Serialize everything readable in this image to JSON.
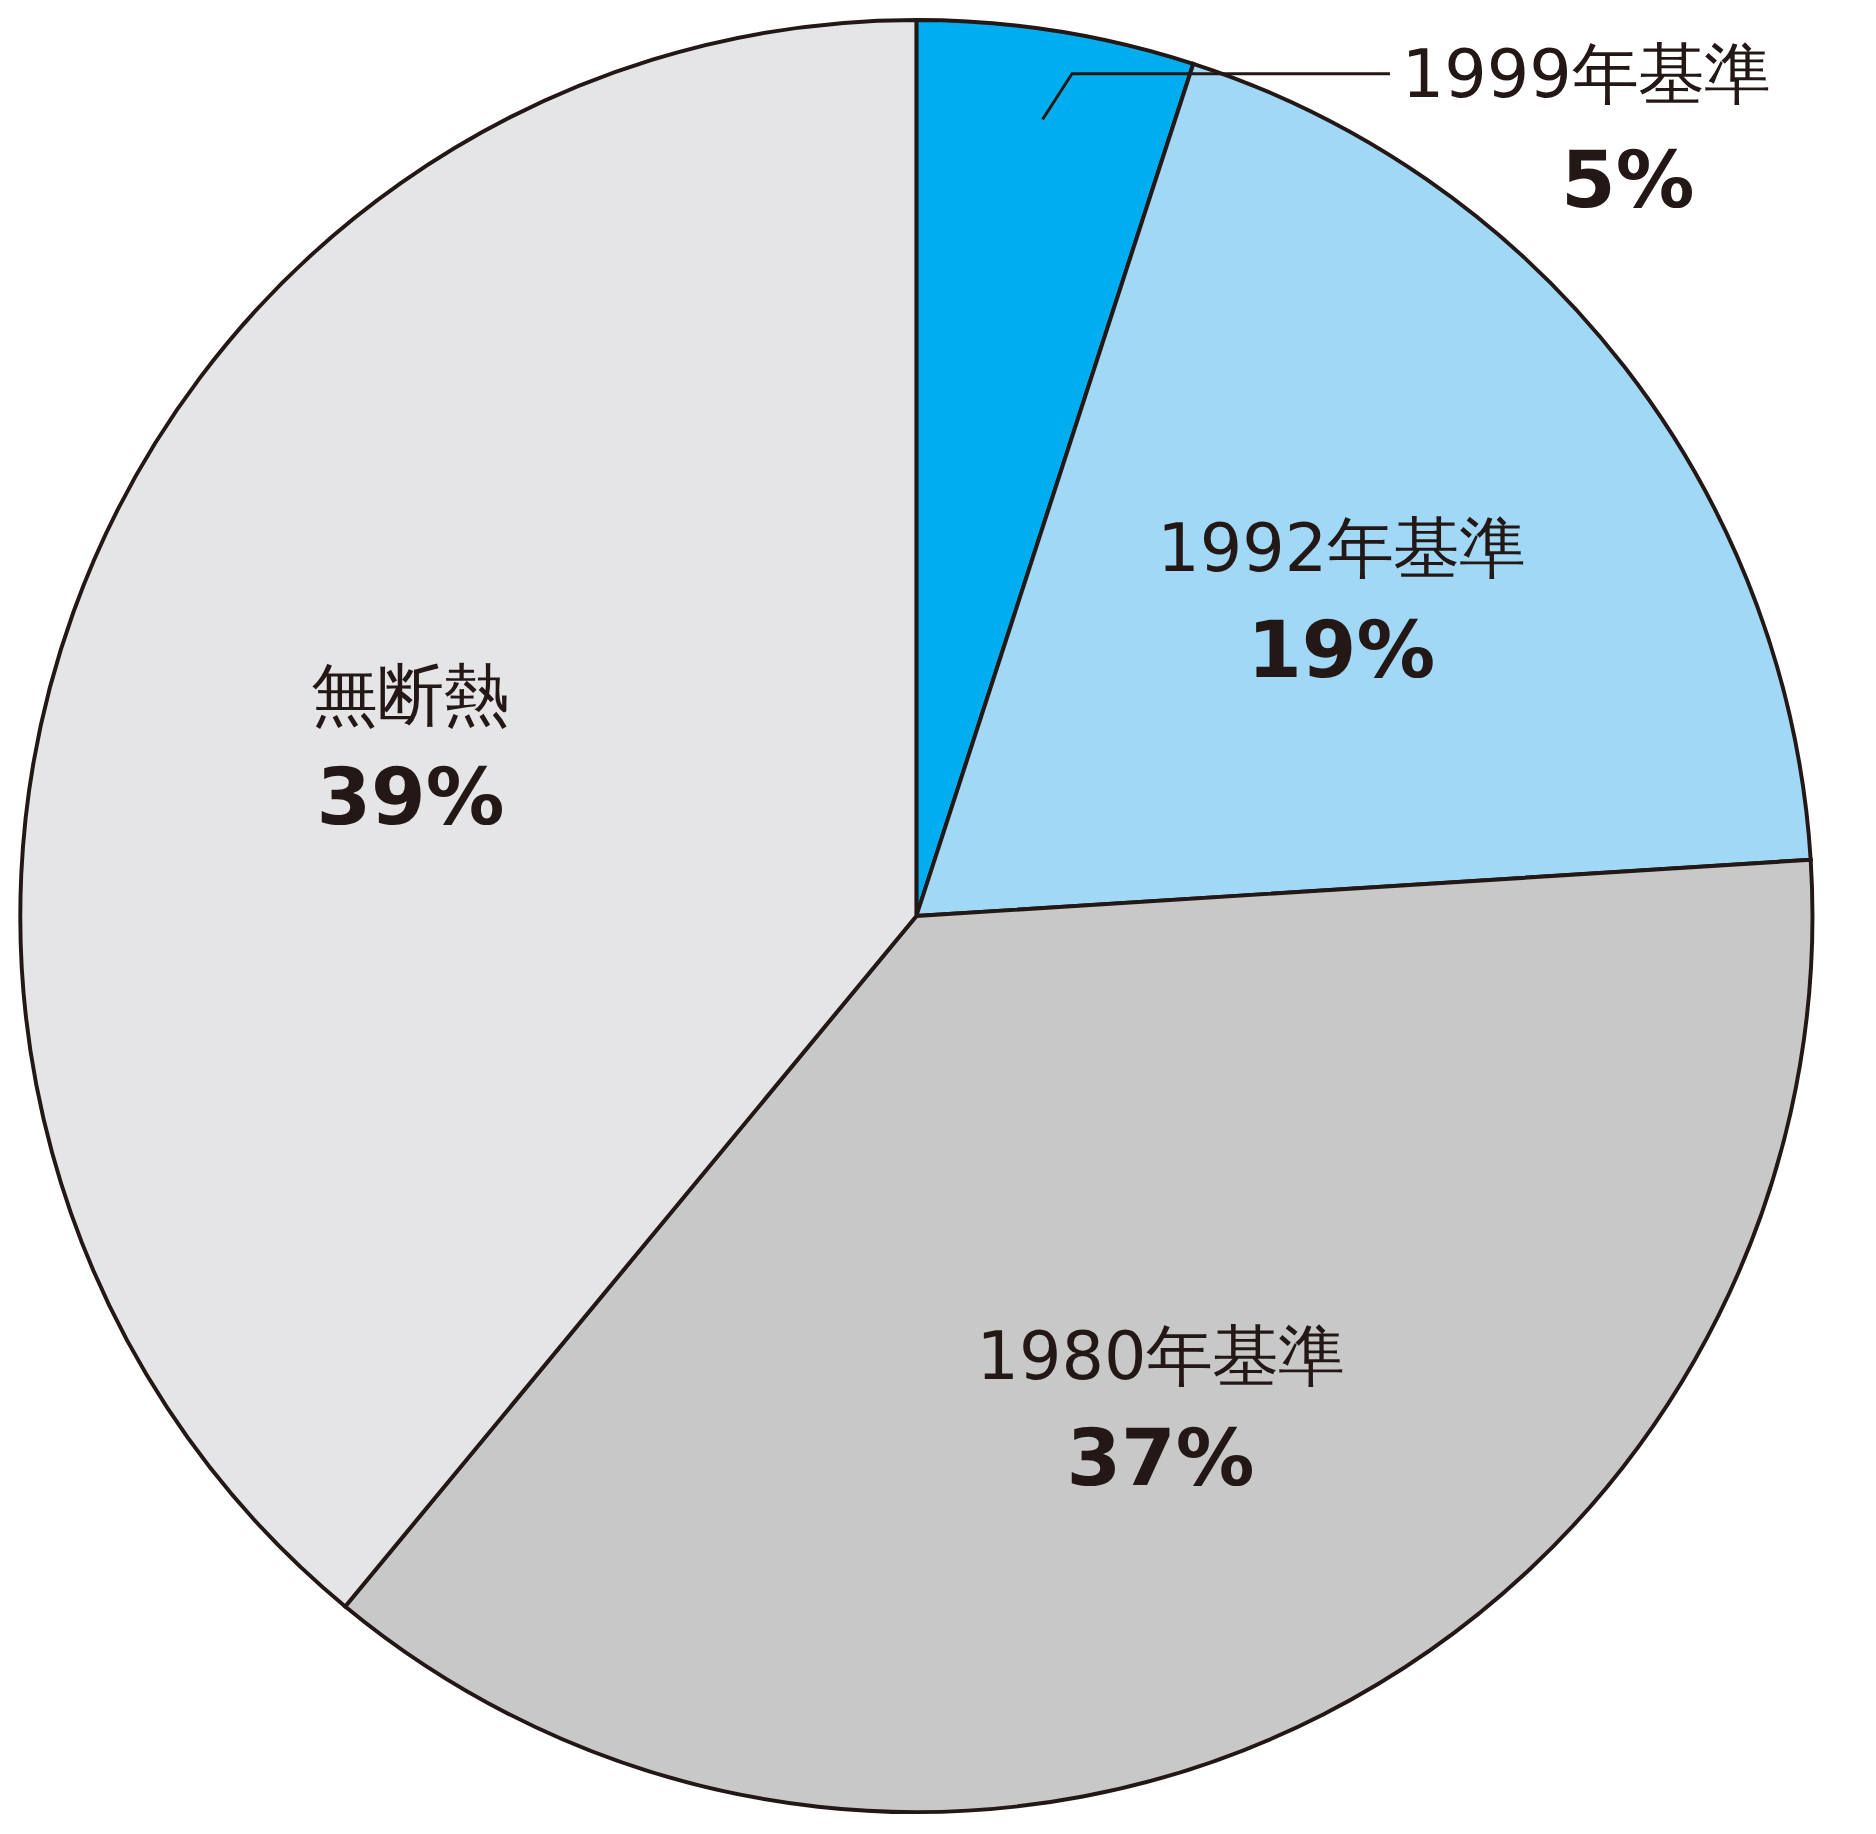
{
  "chart_data": {
    "type": "pie",
    "categories": [
      "1999年基準",
      "1992年基準",
      "1980年基準",
      "無断熱"
    ],
    "values": [
      5,
      19,
      37,
      39
    ],
    "colors": [
      "#00aeef",
      "#a0d8f5",
      "#c8c8c9",
      "#e5e5e7"
    ],
    "value_labels": [
      "5%",
      "19%",
      "37%",
      "39%"
    ]
  }
}
